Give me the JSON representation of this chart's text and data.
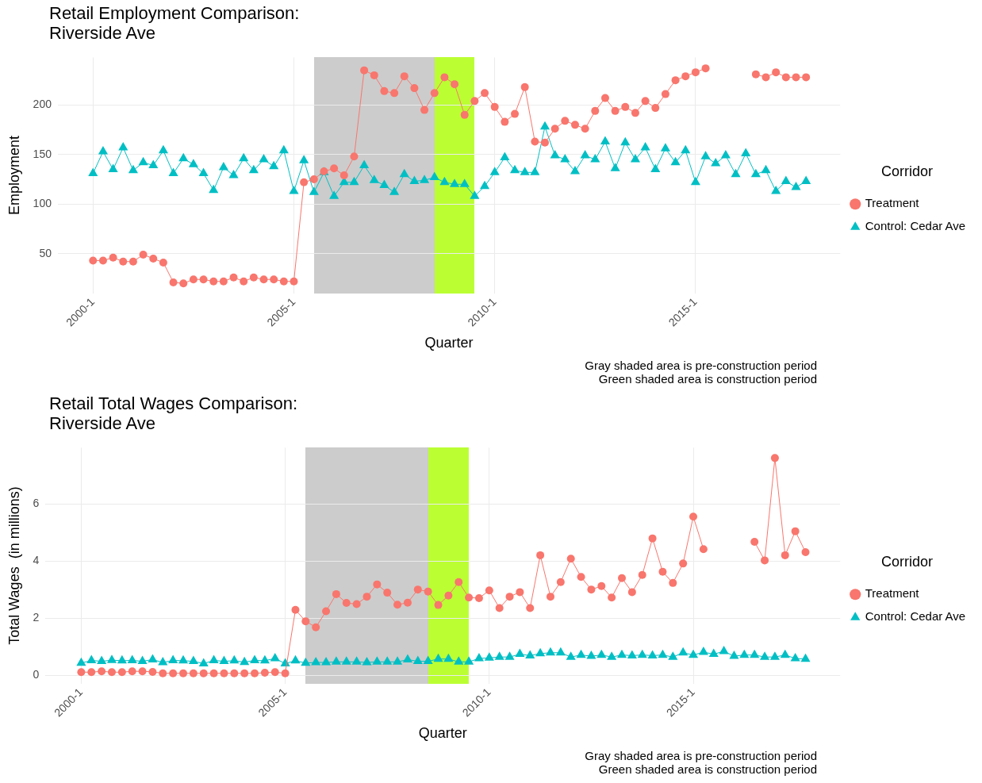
{
  "chart_data": [
    {
      "type": "line",
      "title": "Retail Employment Comparison:\nRiverside Ave",
      "xlabel": "Quarter",
      "ylabel": "Employment",
      "legend_title": "Corridor",
      "categories": [
        "2000-1",
        null,
        null,
        null,
        null,
        null,
        null,
        null,
        null,
        null,
        null,
        null,
        null,
        null,
        null,
        null,
        null,
        null,
        null,
        null,
        "2005-1",
        null,
        null,
        null,
        null,
        null,
        null,
        null,
        null,
        null,
        null,
        null,
        null,
        null,
        null,
        null,
        null,
        null,
        null,
        null,
        "2010-1",
        null,
        null,
        null,
        null,
        null,
        null,
        null,
        null,
        null,
        null,
        null,
        null,
        null,
        null,
        null,
        null,
        null,
        null,
        null,
        "2015-1",
        null,
        null,
        null,
        null,
        null,
        null,
        null,
        null,
        null,
        null,
        null
      ],
      "series": [
        {
          "name": "Treatment",
          "color": "#f8766d",
          "marker": "circle",
          "values": [
            43,
            43,
            46,
            42,
            42,
            49,
            45,
            41,
            21,
            20,
            24,
            24,
            22,
            22,
            26,
            22,
            26,
            24,
            24,
            22,
            22,
            122,
            125,
            133,
            136,
            129,
            148,
            235,
            230,
            214,
            212,
            229,
            217,
            195,
            212,
            228,
            221,
            190,
            204,
            212,
            198,
            183,
            191,
            218,
            163,
            162,
            176,
            184,
            180,
            176,
            194,
            207,
            194,
            198,
            192,
            204,
            197,
            211,
            225,
            229,
            233,
            237,
            null,
            null,
            null,
            null,
            231,
            228,
            233,
            228,
            228,
            228
          ]
        },
        {
          "name": "Control: Cedar Ave",
          "color": "#00bfc4",
          "marker": "triangle",
          "values": [
            131,
            153,
            135,
            157,
            134,
            142,
            139,
            154,
            131,
            146,
            140,
            131,
            114,
            137,
            129,
            146,
            134,
            145,
            138,
            154,
            113,
            144,
            112,
            132,
            108,
            122,
            122,
            139,
            124,
            119,
            112,
            130,
            123,
            124,
            127,
            122,
            120,
            120,
            108,
            118,
            132,
            147,
            134,
            132,
            132,
            178,
            149,
            145,
            133,
            149,
            145,
            163,
            136,
            162,
            145,
            157,
            135,
            156,
            142,
            154,
            122,
            148,
            141,
            149,
            130,
            151,
            130,
            134,
            113,
            123,
            117,
            123
          ]
        }
      ],
      "ylim": [
        10,
        248
      ],
      "yticks": [
        50,
        100,
        150,
        200
      ],
      "grid": true,
      "legend": "right",
      "line_style": "solid",
      "annotations": [
        "Gray shaded area is pre-construction period",
        "Green shaded area is construction period"
      ]
    },
    {
      "type": "line",
      "title": "Retail Total Wages Comparison:\nRiverside Ave",
      "xlabel": "Quarter",
      "ylabel": "Total Wages  (in millions)",
      "legend_title": "Corridor",
      "categories": [
        "2000-1",
        null,
        null,
        null,
        null,
        null,
        null,
        null,
        null,
        null,
        null,
        null,
        null,
        null,
        null,
        null,
        null,
        null,
        null,
        null,
        "2005-1",
        null,
        null,
        null,
        null,
        null,
        null,
        null,
        null,
        null,
        null,
        null,
        null,
        null,
        null,
        null,
        null,
        null,
        null,
        null,
        "2010-1",
        null,
        null,
        null,
        null,
        null,
        null,
        null,
        null,
        null,
        null,
        null,
        null,
        null,
        null,
        null,
        null,
        null,
        null,
        null,
        "2015-1",
        null,
        null,
        null,
        null,
        null,
        null,
        null,
        null,
        null,
        null,
        null
      ],
      "series": [
        {
          "name": "Treatment",
          "color": "#f8766d",
          "marker": "circle",
          "values": [
            0.12,
            0.12,
            0.15,
            0.12,
            0.12,
            0.15,
            0.15,
            0.13,
            0.08,
            0.08,
            0.08,
            0.08,
            0.08,
            0.08,
            0.08,
            0.08,
            0.08,
            0.08,
            0.1,
            0.12,
            0.08,
            2.3,
            1.9,
            1.69,
            2.25,
            2.85,
            2.54,
            2.5,
            2.76,
            3.19,
            2.9,
            2.48,
            2.55,
            3.01,
            2.94,
            2.47,
            2.8,
            3.27,
            2.73,
            2.71,
            2.98,
            2.36,
            2.76,
            2.92,
            2.36,
            4.21,
            2.76,
            3.27,
            4.09,
            3.45,
            3.01,
            3.13,
            2.73,
            3.41,
            2.92,
            3.52,
            4.8,
            3.63,
            3.24,
            3.92,
            5.56,
            4.42,
            null,
            null,
            null,
            null,
            4.68,
            4.03,
            7.61,
            4.21,
            5.05,
            4.32
          ]
        },
        {
          "name": "Control: Cedar Ave",
          "color": "#00bfc4",
          "marker": "triangle",
          "values": [
            0.44,
            0.53,
            0.5,
            0.54,
            0.52,
            0.53,
            0.5,
            0.56,
            0.46,
            0.53,
            0.52,
            0.5,
            0.42,
            0.53,
            0.5,
            0.52,
            0.47,
            0.53,
            0.52,
            0.6,
            0.42,
            0.52,
            0.44,
            0.46,
            0.46,
            0.48,
            0.48,
            0.48,
            0.46,
            0.48,
            0.48,
            0.48,
            0.56,
            0.5,
            0.5,
            0.58,
            0.58,
            0.48,
            0.48,
            0.6,
            0.62,
            0.65,
            0.65,
            0.75,
            0.7,
            0.77,
            0.8,
            0.8,
            0.65,
            0.72,
            0.68,
            0.72,
            0.65,
            0.72,
            0.7,
            0.72,
            0.7,
            0.72,
            0.65,
            0.8,
            0.72,
            0.82,
            0.75,
            0.85,
            0.68,
            0.72,
            0.72,
            0.65,
            0.65,
            0.72,
            0.6,
            0.58
          ]
        }
      ],
      "ylim": [
        -0.28,
        7.97
      ],
      "yticks": [
        0,
        2,
        4,
        6
      ],
      "grid": true,
      "legend": "right",
      "line_style": "solid",
      "annotations": [
        "Gray shaded area is pre-construction period",
        "Green shaded area is construction period"
      ]
    }
  ]
}
